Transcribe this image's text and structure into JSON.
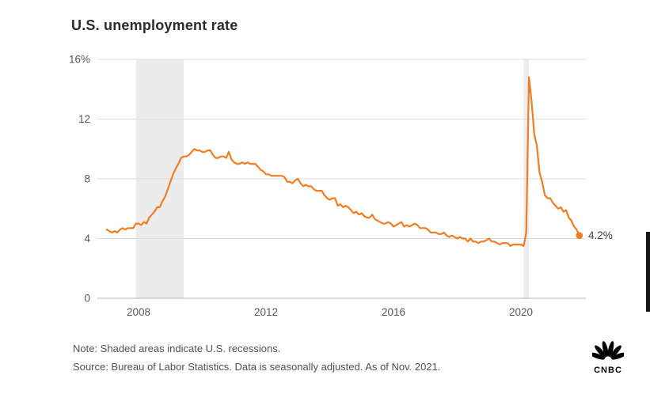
{
  "title": "U.S. unemployment rate",
  "annotation": {
    "label": "4.2%"
  },
  "notes": {
    "note": "Note: Shaded areas indicate U.S. recessions.",
    "source": "Source: Bureau of Labor Statistics. Data is seasonally adjusted. As of Nov. 2021."
  },
  "logo": {
    "text": "CNBC"
  },
  "colors": {
    "line": "#ee7d23",
    "recession": "#ececec",
    "grid": "#dcdcdc",
    "zero_axis": "#b5b5b5",
    "axis_text": "#53585f"
  },
  "chart_data": {
    "type": "line",
    "title": "U.S. unemployment rate",
    "x_start": "2007-01",
    "x_end": "2021-11",
    "x_tick_years": [
      2008,
      2012,
      2016,
      2020
    ],
    "x_tick_labels": [
      "2008",
      "2012",
      "2016",
      "2020"
    ],
    "y_ticks": [
      0,
      4,
      8,
      12,
      16
    ],
    "y_tick_labels": [
      "0",
      "4",
      "8",
      "12",
      "16%"
    ],
    "ylim": [
      0,
      16
    ],
    "grid": true,
    "legend": false,
    "recessions": [
      {
        "start": "2007-12",
        "end": "2009-06"
      },
      {
        "start": "2020-02",
        "end": "2020-04"
      }
    ],
    "series": [
      {
        "name": "U.S. unemployment rate (%, monthly, seasonally adjusted)",
        "start": "2007-01",
        "end_label": "4.2%",
        "values": [
          4.6,
          4.5,
          4.4,
          4.5,
          4.4,
          4.6,
          4.7,
          4.6,
          4.7,
          4.7,
          4.7,
          5.0,
          5.0,
          4.9,
          5.1,
          5.0,
          5.4,
          5.6,
          5.8,
          6.1,
          6.1,
          6.5,
          6.8,
          7.3,
          7.8,
          8.3,
          8.7,
          9.0,
          9.4,
          9.5,
          9.5,
          9.6,
          9.8,
          10.0,
          9.9,
          9.9,
          9.8,
          9.8,
          9.9,
          9.9,
          9.6,
          9.4,
          9.4,
          9.5,
          9.5,
          9.4,
          9.8,
          9.3,
          9.1,
          9.0,
          9.0,
          9.1,
          9.0,
          9.1,
          9.0,
          9.0,
          9.0,
          8.8,
          8.6,
          8.5,
          8.3,
          8.3,
          8.2,
          8.2,
          8.2,
          8.2,
          8.2,
          8.1,
          7.8,
          7.8,
          7.7,
          7.9,
          8.0,
          7.7,
          7.5,
          7.6,
          7.5,
          7.5,
          7.3,
          7.2,
          7.2,
          7.2,
          6.9,
          6.7,
          6.6,
          6.7,
          6.7,
          6.2,
          6.3,
          6.1,
          6.2,
          6.1,
          5.9,
          5.7,
          5.8,
          5.6,
          5.7,
          5.5,
          5.4,
          5.4,
          5.6,
          5.3,
          5.2,
          5.1,
          5.0,
          5.0,
          5.1,
          5.0,
          4.8,
          4.9,
          5.0,
          5.1,
          4.8,
          4.9,
          4.8,
          4.9,
          5.0,
          4.9,
          4.7,
          4.7,
          4.7,
          4.6,
          4.4,
          4.4,
          4.4,
          4.3,
          4.3,
          4.4,
          4.2,
          4.1,
          4.2,
          4.1,
          4.0,
          4.1,
          4.0,
          4.0,
          3.8,
          4.0,
          3.8,
          3.8,
          3.7,
          3.8,
          3.8,
          3.9,
          4.0,
          3.8,
          3.8,
          3.7,
          3.6,
          3.7,
          3.7,
          3.7,
          3.5,
          3.6,
          3.6,
          3.6,
          3.6,
          3.5,
          4.4,
          14.8,
          13.2,
          11.0,
          10.2,
          8.4,
          7.8,
          6.9,
          6.7,
          6.7,
          6.4,
          6.2,
          6.0,
          6.1,
          5.8,
          5.9,
          5.4,
          5.2,
          4.8,
          4.6,
          4.2
        ]
      }
    ]
  }
}
